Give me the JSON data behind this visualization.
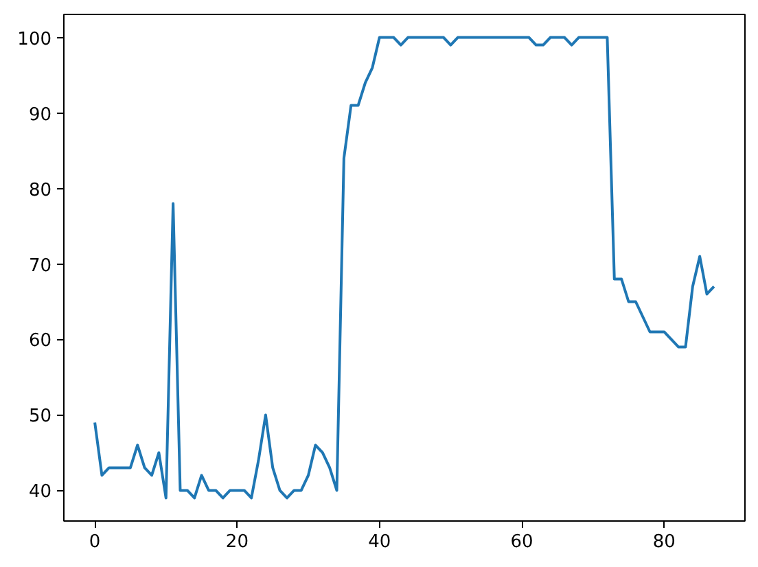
{
  "chart_data": {
    "type": "line",
    "x": [
      0,
      1,
      2,
      3,
      4,
      5,
      6,
      7,
      8,
      9,
      10,
      11,
      12,
      13,
      14,
      15,
      16,
      17,
      18,
      19,
      20,
      21,
      22,
      23,
      24,
      25,
      26,
      27,
      28,
      29,
      30,
      31,
      32,
      33,
      34,
      35,
      36,
      37,
      38,
      39,
      40,
      41,
      42,
      43,
      44,
      45,
      46,
      47,
      48,
      49,
      50,
      51,
      52,
      53,
      54,
      55,
      56,
      57,
      58,
      59,
      60,
      61,
      62,
      63,
      64,
      65,
      66,
      67,
      68,
      69,
      70,
      71,
      72,
      73,
      74,
      75,
      76,
      77,
      78,
      79,
      80,
      81,
      82,
      83,
      84,
      85,
      86,
      87
    ],
    "series": [
      {
        "color": "#1f77b4",
        "values": [
          49,
          42,
          43,
          43,
          43,
          43,
          46,
          43,
          42,
          45,
          39,
          78,
          40,
          40,
          39,
          42,
          40,
          40,
          39,
          40,
          40,
          40,
          39,
          44,
          50,
          43,
          40,
          39,
          40,
          40,
          42,
          46,
          45,
          43,
          40,
          84,
          91,
          91,
          94,
          96,
          100,
          100,
          100,
          99,
          100,
          100,
          100,
          100,
          100,
          100,
          99,
          100,
          100,
          100,
          100,
          100,
          100,
          100,
          100,
          100,
          100,
          100,
          99,
          99,
          100,
          100,
          100,
          99,
          100,
          100,
          100,
          100,
          100,
          68,
          68,
          65,
          65,
          63,
          61,
          61,
          61,
          60,
          59,
          59,
          67,
          71,
          66,
          67
        ]
      }
    ],
    "xlim": [
      -4.35,
      91.35
    ],
    "ylim": [
      35.95,
      103.05
    ],
    "xticks": [
      0,
      20,
      40,
      60,
      80
    ],
    "yticks": [
      40,
      50,
      60,
      70,
      80,
      90,
      100
    ]
  }
}
